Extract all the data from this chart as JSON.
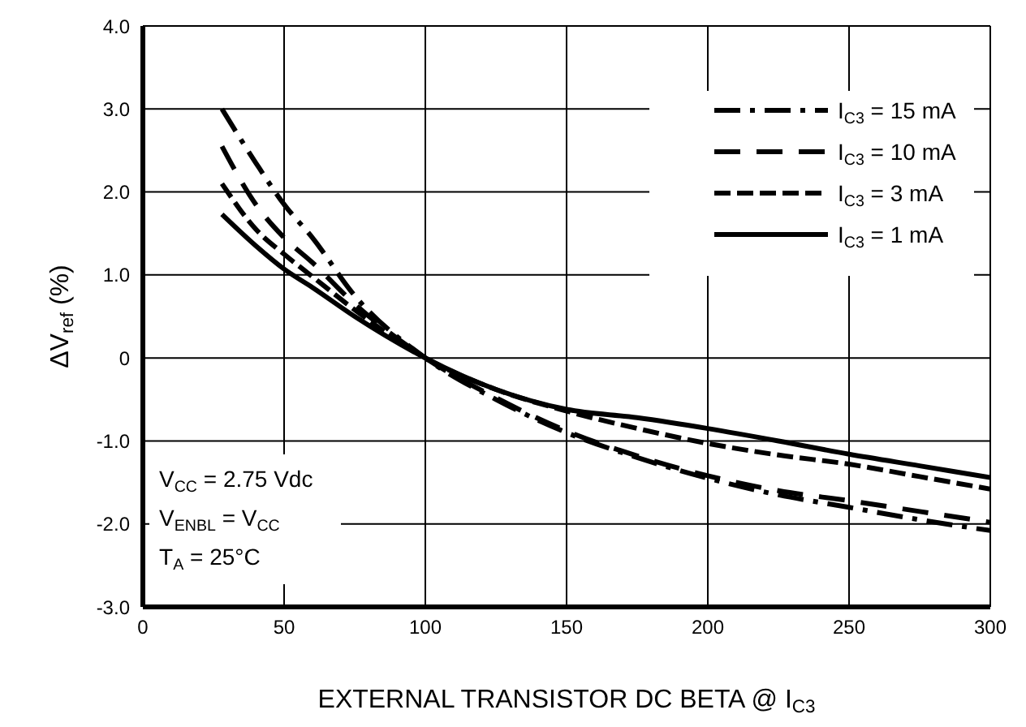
{
  "chart_data": {
    "type": "line",
    "xlabel": "EXTERNAL TRANSISTOR DC BETA @ I$_{C3}$",
    "ylabel": "ΔV$_{ref}$ (%)",
    "x": [
      28,
      40,
      50,
      60,
      75,
      100,
      125,
      150,
      175,
      200,
      225,
      250,
      275,
      300
    ],
    "series": [
      {
        "name": "I$_{C3}$ = 15 mA",
        "color": "#000000",
        "line_style": "dashdot",
        "values": [
          3.0,
          2.35,
          1.85,
          1.45,
          0.75,
          0,
          -0.5,
          -0.9,
          -1.2,
          -1.45,
          -1.65,
          -1.8,
          -1.95,
          -2.08
        ]
      },
      {
        "name": "I$_{C3}$ = 10 mA",
        "color": "#000000",
        "line_style": "longdash",
        "values": [
          2.55,
          1.85,
          1.45,
          1.15,
          0.65,
          0,
          -0.48,
          -0.88,
          -1.18,
          -1.42,
          -1.6,
          -1.72,
          -1.85,
          -1.98
        ]
      },
      {
        "name": "I$_{C3}$ = 3 mA",
        "color": "#000000",
        "line_style": "dashed",
        "values": [
          2.1,
          1.55,
          1.25,
          0.98,
          0.58,
          0,
          -0.38,
          -0.64,
          -0.85,
          -1.03,
          -1.17,
          -1.28,
          -1.43,
          -1.58
        ]
      },
      {
        "name": "I$_{C3}$ = 1 mA",
        "color": "#000000",
        "line_style": "solid",
        "values": [
          1.73,
          1.35,
          1.07,
          0.85,
          0.5,
          0,
          -0.38,
          -0.62,
          -0.72,
          -0.85,
          -1.0,
          -1.16,
          -1.3,
          -1.44
        ]
      }
    ],
    "xlim": [
      0,
      300
    ],
    "xticks": [
      0,
      50,
      100,
      150,
      200,
      250,
      300
    ],
    "ylim": [
      -3,
      4
    ],
    "yticks": [
      {
        "value": -3,
        "label": "-3.0"
      },
      {
        "value": -2,
        "label": "-2.0"
      },
      {
        "value": -1,
        "label": "-1.0"
      },
      0,
      {
        "value": 1,
        "label": "1.0"
      },
      {
        "value": 2,
        "label": "2.0"
      },
      {
        "value": 3,
        "label": "3.0"
      },
      {
        "value": 4,
        "label": "4.0"
      }
    ],
    "grid": true,
    "legend": "top right",
    "marker": "none",
    "annotations": [
      "V$_{CC}$ = 2.75 Vdc",
      "V$_{ENBL}$ = V$_{CC}$",
      "T$_{A}$ = 25°C"
    ]
  }
}
